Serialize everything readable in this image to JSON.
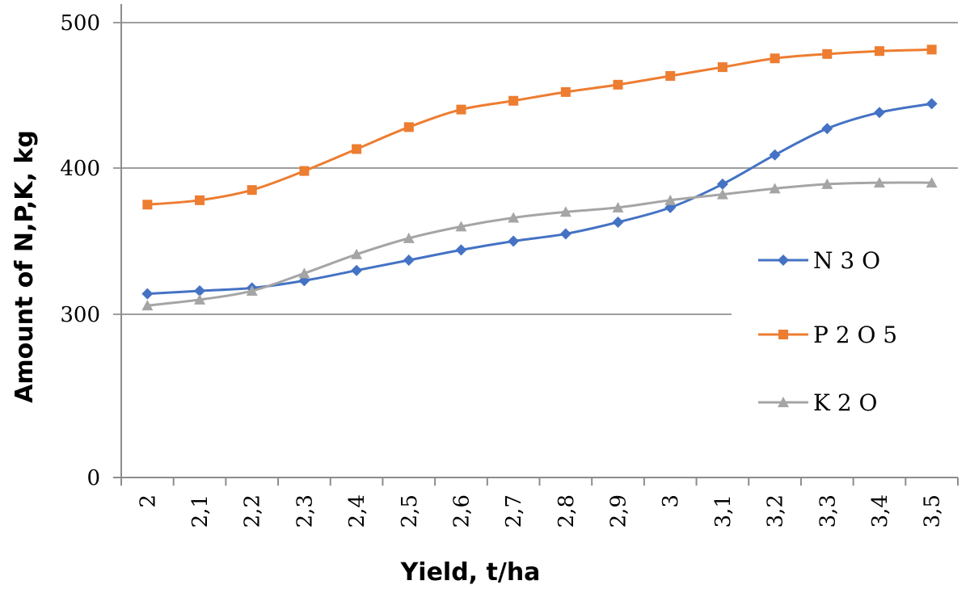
{
  "chart_data": {
    "type": "line",
    "xlabel": "Yield, t/ha",
    "ylabel": "Amount of N,P,K, kg",
    "categories": [
      "2",
      "2,1",
      "2,2",
      "2,3",
      "2,4",
      "2,5",
      "2,6",
      "2,7",
      "2,8",
      "2,9",
      "3",
      "3,1",
      "3,2",
      "3,3",
      "3,4",
      "3,5"
    ],
    "yticks": [
      "0",
      "300",
      "400",
      "500"
    ],
    "grid": true,
    "legend_position": "right",
    "series": [
      {
        "name": "N 3 O",
        "color": "#4472C4",
        "marker": "diamond",
        "values": [
          314,
          316,
          318,
          323,
          330,
          337,
          344,
          350,
          355,
          363,
          373,
          389,
          409,
          427,
          438,
          444
        ]
      },
      {
        "name": "P 2 O 5",
        "color": "#ED7D31",
        "marker": "square",
        "values": [
          375,
          378,
          385,
          398,
          413,
          428,
          440,
          446,
          452,
          457,
          463,
          469,
          475,
          478,
          480,
          481
        ]
      },
      {
        "name": "K 2 O",
        "color": "#A5A5A5",
        "marker": "triangle",
        "values": [
          306,
          310,
          316,
          328,
          341,
          352,
          360,
          366,
          370,
          373,
          378,
          382,
          386,
          389,
          390,
          390
        ]
      }
    ]
  }
}
